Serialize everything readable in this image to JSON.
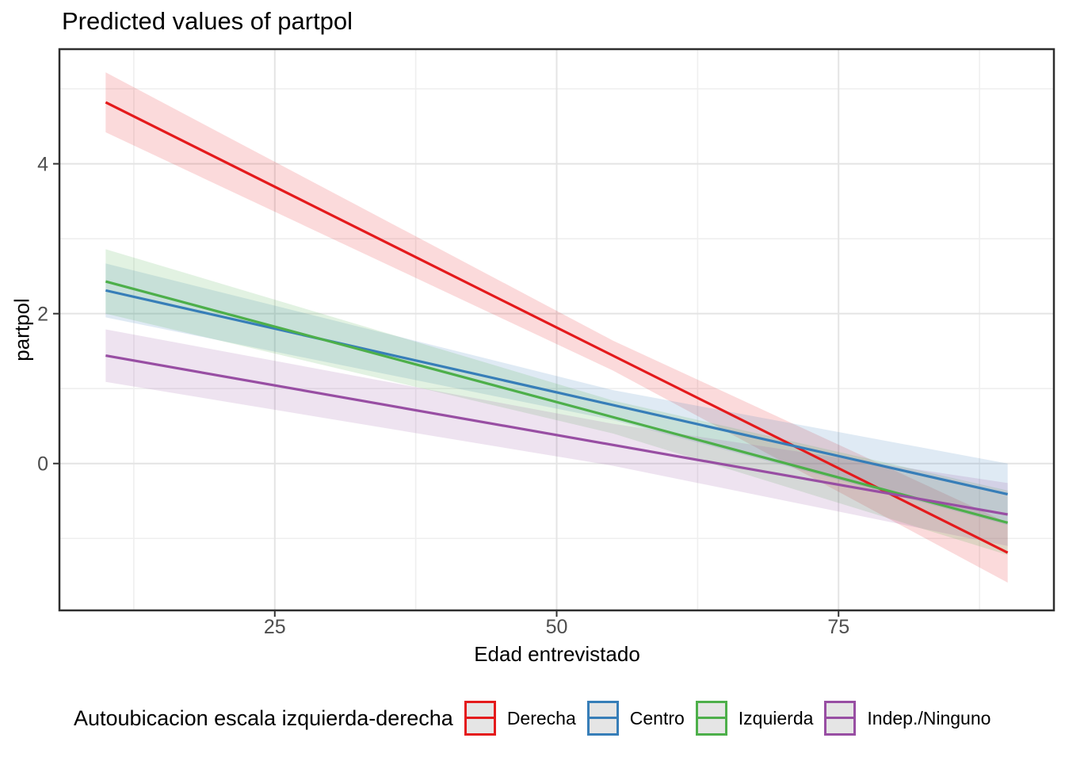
{
  "chart_data": {
    "type": "line",
    "title": "Predicted values of partpol",
    "xlabel": "Edad entrevistado",
    "ylabel": "partpol",
    "xlim": [
      5.9,
      94.1
    ],
    "ylim": [
      -1.96,
      5.53
    ],
    "xticks": [
      25,
      50,
      75
    ],
    "yticks": [
      0,
      2,
      4
    ],
    "xticks_minor": [
      12.5,
      37.5,
      62.5,
      87.5
    ],
    "yticks_minor": [
      -1,
      1,
      3,
      5
    ],
    "grid": true,
    "series": [
      {
        "name": "Derecha",
        "color": "#E41A1C",
        "x": [
          10,
          90
        ],
        "y": [
          4.82,
          -1.19
        ],
        "ci_x": [
          10,
          55,
          90
        ],
        "ci_upper": [
          5.22,
          1.64,
          -0.79
        ],
        "ci_lower": [
          4.42,
          1.24,
          -1.59
        ]
      },
      {
        "name": "Centro",
        "color": "#377EB8",
        "x": [
          10,
          90
        ],
        "y": [
          2.31,
          -0.41
        ],
        "ci_x": [
          10,
          55,
          90
        ],
        "ci_upper": [
          2.67,
          0.98,
          0.0
        ],
        "ci_lower": [
          1.95,
          0.58,
          -0.82
        ]
      },
      {
        "name": "Izquierda",
        "color": "#4DAF4A",
        "x": [
          10,
          90
        ],
        "y": [
          2.43,
          -0.79
        ],
        "ci_x": [
          10,
          55,
          90
        ],
        "ci_upper": [
          2.86,
          0.84,
          -0.36
        ],
        "ci_lower": [
          2.0,
          0.4,
          -1.22
        ]
      },
      {
        "name": "Indep./Ninguno",
        "color": "#984EA3",
        "x": [
          10,
          90
        ],
        "y": [
          1.44,
          -0.68
        ],
        "ci_x": [
          10,
          55,
          90
        ],
        "ci_upper": [
          1.79,
          0.53,
          -0.26
        ],
        "ci_lower": [
          1.09,
          -0.03,
          -1.1
        ]
      }
    ],
    "legend": {
      "title": "Autoubicacion escala izquierda-derecha",
      "position": "bottom",
      "entries": [
        "Derecha",
        "Centro",
        "Izquierda",
        "Indep./Ninguno"
      ]
    }
  },
  "theme": {
    "background": "#FFFFFF",
    "panel_border": "#2E2E2E",
    "grid_major": "#E4E4E4",
    "grid_minor": "#EFEFEF",
    "tick_mark": "#333333",
    "tick_label": "#4D4D4D",
    "text": "#000000",
    "legend_key_fill": "#E5E5E5",
    "ribbon_opacity": 0.16,
    "line_width": 3.2
  }
}
